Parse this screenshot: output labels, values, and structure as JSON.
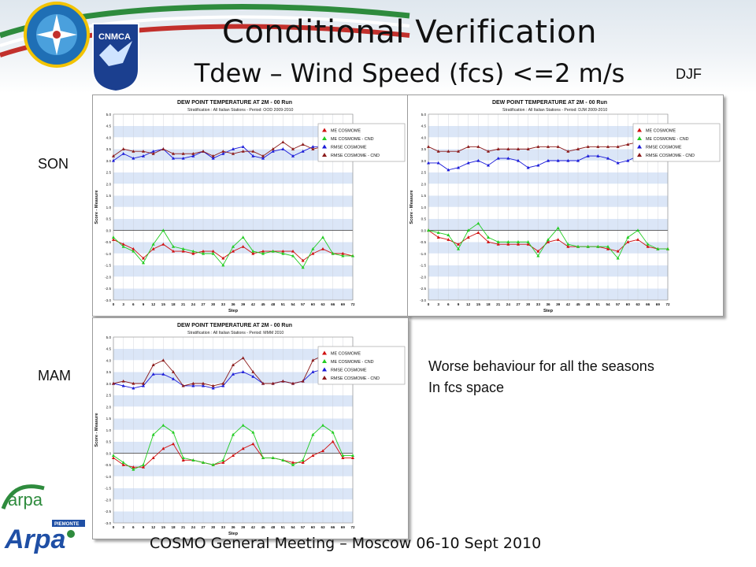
{
  "header": {
    "title": "Conditional Verification",
    "subtitle": "Tdew – Wind Speed (fcs) <=2 m/s",
    "logo_label": "CNMCA"
  },
  "seasons": {
    "djf": "DJF",
    "son": "SON",
    "mam": "MAM"
  },
  "comment": {
    "line1": "Worse behaviour  for all the seasons",
    "line2": "In fcs space"
  },
  "footer": {
    "text": "COSMO General Meeting – Moscow 06-10 Sept 2010"
  },
  "logos": {
    "arpa": "arpa",
    "arpa_piemonte": "Arpa",
    "piemonte": "PIEMONTE"
  },
  "colors": {
    "me": "#d01010",
    "me_cnd": "#22cc22",
    "rmse": "#1a1ad8",
    "rmse_cnd": "#8b1a1a",
    "band": "#dbe6f7"
  },
  "chart_data": [
    {
      "type": "line",
      "title": "DEW POINT TEMPERATURE AT 2M - 00 Run",
      "subtitle": "Stratification : All Italian Stations - Period: OOD 2009-2010",
      "xlabel": "Step",
      "ylabel": "Score - Measure",
      "ylim": [
        -3.0,
        5.0
      ],
      "x": [
        0,
        3,
        6,
        9,
        12,
        15,
        18,
        21,
        24,
        27,
        30,
        33,
        36,
        39,
        42,
        45,
        48,
        51,
        54,
        57,
        60,
        63,
        66,
        69,
        72
      ],
      "legend_position": "top-right",
      "series": [
        {
          "name": "ME COSMOME",
          "color": "#d01010",
          "values": [
            -0.4,
            -0.6,
            -0.8,
            -1.2,
            -0.8,
            -0.6,
            -0.9,
            -0.9,
            -1.0,
            -0.9,
            -0.9,
            -1.2,
            -0.9,
            -0.7,
            -1.0,
            -0.9,
            -0.9,
            -0.9,
            -0.9,
            -1.3,
            -1.0,
            -0.8,
            -1.0,
            -1.0,
            -1.1
          ]
        },
        {
          "name": "ME COSMOME - CND",
          "color": "#22cc22",
          "values": [
            -0.3,
            -0.7,
            -0.9,
            -1.4,
            -0.6,
            0.0,
            -0.7,
            -0.8,
            -0.9,
            -1.0,
            -1.0,
            -1.5,
            -0.7,
            -0.3,
            -0.9,
            -1.0,
            -0.9,
            -1.0,
            -1.1,
            -1.6,
            -0.8,
            -0.3,
            -1.0,
            -1.1,
            -1.1
          ]
        },
        {
          "name": "RMSE COSMOME",
          "color": "#1a1ad8",
          "values": [
            3.0,
            3.3,
            3.1,
            3.2,
            3.4,
            3.5,
            3.1,
            3.1,
            3.2,
            3.4,
            3.1,
            3.3,
            3.5,
            3.6,
            3.2,
            3.1,
            3.4,
            3.5,
            3.2,
            3.4,
            3.6,
            3.6,
            3.3,
            3.2,
            3.3
          ]
        },
        {
          "name": "RMSE COSMOME - CND",
          "color": "#8b1a1a",
          "values": [
            3.2,
            3.5,
            3.4,
            3.4,
            3.3,
            3.5,
            3.3,
            3.3,
            3.3,
            3.4,
            3.2,
            3.4,
            3.3,
            3.4,
            3.4,
            3.2,
            3.5,
            3.8,
            3.5,
            3.7,
            3.5,
            3.6,
            3.5,
            3.4,
            3.4
          ]
        }
      ]
    },
    {
      "type": "line",
      "title": "DEW POINT TEMPERATURE AT 2M - 00 Run",
      "subtitle": "Stratification : All Italian Stations - Period: DJM 2009-2010",
      "xlabel": "Step",
      "ylabel": "Score - Measure",
      "ylim": [
        -3.0,
        5.0
      ],
      "x": [
        0,
        3,
        6,
        9,
        12,
        15,
        18,
        21,
        24,
        27,
        30,
        33,
        36,
        39,
        42,
        45,
        48,
        51,
        54,
        57,
        60,
        63,
        66,
        69,
        72
      ],
      "legend_position": "top-right",
      "series": [
        {
          "name": "ME COSMOME",
          "color": "#d01010",
          "values": [
            0.0,
            -0.3,
            -0.4,
            -0.6,
            -0.3,
            -0.1,
            -0.5,
            -0.6,
            -0.6,
            -0.6,
            -0.6,
            -0.9,
            -0.5,
            -0.4,
            -0.7,
            -0.7,
            -0.7,
            -0.7,
            -0.8,
            -0.9,
            -0.5,
            -0.4,
            -0.7,
            -0.8,
            -0.8
          ]
        },
        {
          "name": "ME COSMOME - CND",
          "color": "#22cc22",
          "values": [
            0.0,
            -0.1,
            -0.2,
            -0.8,
            0.0,
            0.3,
            -0.3,
            -0.5,
            -0.5,
            -0.5,
            -0.5,
            -1.1,
            -0.4,
            0.1,
            -0.6,
            -0.7,
            -0.7,
            -0.7,
            -0.7,
            -1.2,
            -0.3,
            0.0,
            -0.6,
            -0.8,
            -0.8
          ]
        },
        {
          "name": "RMSE COSMOME",
          "color": "#1a1ad8",
          "values": [
            2.9,
            2.9,
            2.6,
            2.7,
            2.9,
            3.0,
            2.8,
            3.1,
            3.1,
            3.0,
            2.7,
            2.8,
            3.0,
            3.0,
            3.0,
            3.0,
            3.2,
            3.2,
            3.1,
            2.9,
            3.0,
            3.2,
            3.2,
            3.1,
            3.1
          ]
        },
        {
          "name": "RMSE COSMOME - CND",
          "color": "#8b1a1a",
          "values": [
            3.6,
            3.4,
            3.4,
            3.4,
            3.6,
            3.6,
            3.4,
            3.5,
            3.5,
            3.5,
            3.5,
            3.6,
            3.6,
            3.6,
            3.4,
            3.5,
            3.6,
            3.6,
            3.6,
            3.6,
            3.7,
            3.8,
            3.7,
            3.6,
            3.6
          ]
        }
      ]
    },
    {
      "type": "line",
      "title": "DEW POINT TEMPERATURE AT 2M - 00 Run",
      "subtitle": "Stratification : All Italian Stations - Period: MMM 2010",
      "xlabel": "Step",
      "ylabel": "Score - Measure",
      "ylim": [
        -3.0,
        5.0
      ],
      "x": [
        0,
        3,
        6,
        9,
        12,
        15,
        18,
        21,
        24,
        27,
        30,
        33,
        36,
        39,
        42,
        45,
        48,
        51,
        54,
        57,
        60,
        63,
        66,
        69,
        72
      ],
      "legend_position": "top-right",
      "series": [
        {
          "name": "ME COSMOME",
          "color": "#d01010",
          "values": [
            -0.2,
            -0.5,
            -0.6,
            -0.6,
            -0.2,
            0.2,
            0.4,
            -0.3,
            -0.3,
            -0.4,
            -0.5,
            -0.4,
            -0.1,
            0.2,
            0.4,
            -0.2,
            -0.2,
            -0.3,
            -0.4,
            -0.4,
            -0.1,
            0.1,
            0.5,
            -0.2,
            -0.2
          ]
        },
        {
          "name": "ME COSMOME - CND",
          "color": "#22cc22",
          "values": [
            -0.1,
            -0.4,
            -0.7,
            -0.5,
            0.8,
            1.2,
            0.9,
            -0.2,
            -0.3,
            -0.4,
            -0.5,
            -0.3,
            0.8,
            1.2,
            0.9,
            -0.2,
            -0.2,
            -0.3,
            -0.5,
            -0.3,
            0.8,
            1.2,
            0.9,
            -0.1,
            -0.1
          ]
        },
        {
          "name": "RMSE COSMOME",
          "color": "#1a1ad8",
          "values": [
            3.0,
            2.9,
            2.8,
            2.9,
            3.4,
            3.4,
            3.2,
            2.9,
            2.9,
            2.9,
            2.8,
            2.9,
            3.4,
            3.5,
            3.3,
            3.0,
            3.0,
            3.1,
            3.0,
            3.1,
            3.5,
            3.6,
            3.4,
            3.2,
            3.2
          ]
        },
        {
          "name": "RMSE COSMOME - CND",
          "color": "#8b1a1a",
          "values": [
            3.0,
            3.1,
            3.0,
            3.0,
            3.8,
            4.0,
            3.5,
            2.9,
            3.0,
            3.0,
            2.9,
            3.0,
            3.8,
            4.1,
            3.5,
            3.0,
            3.0,
            3.1,
            3.0,
            3.1,
            4.0,
            4.2,
            3.5,
            3.3,
            3.3
          ]
        }
      ]
    }
  ]
}
